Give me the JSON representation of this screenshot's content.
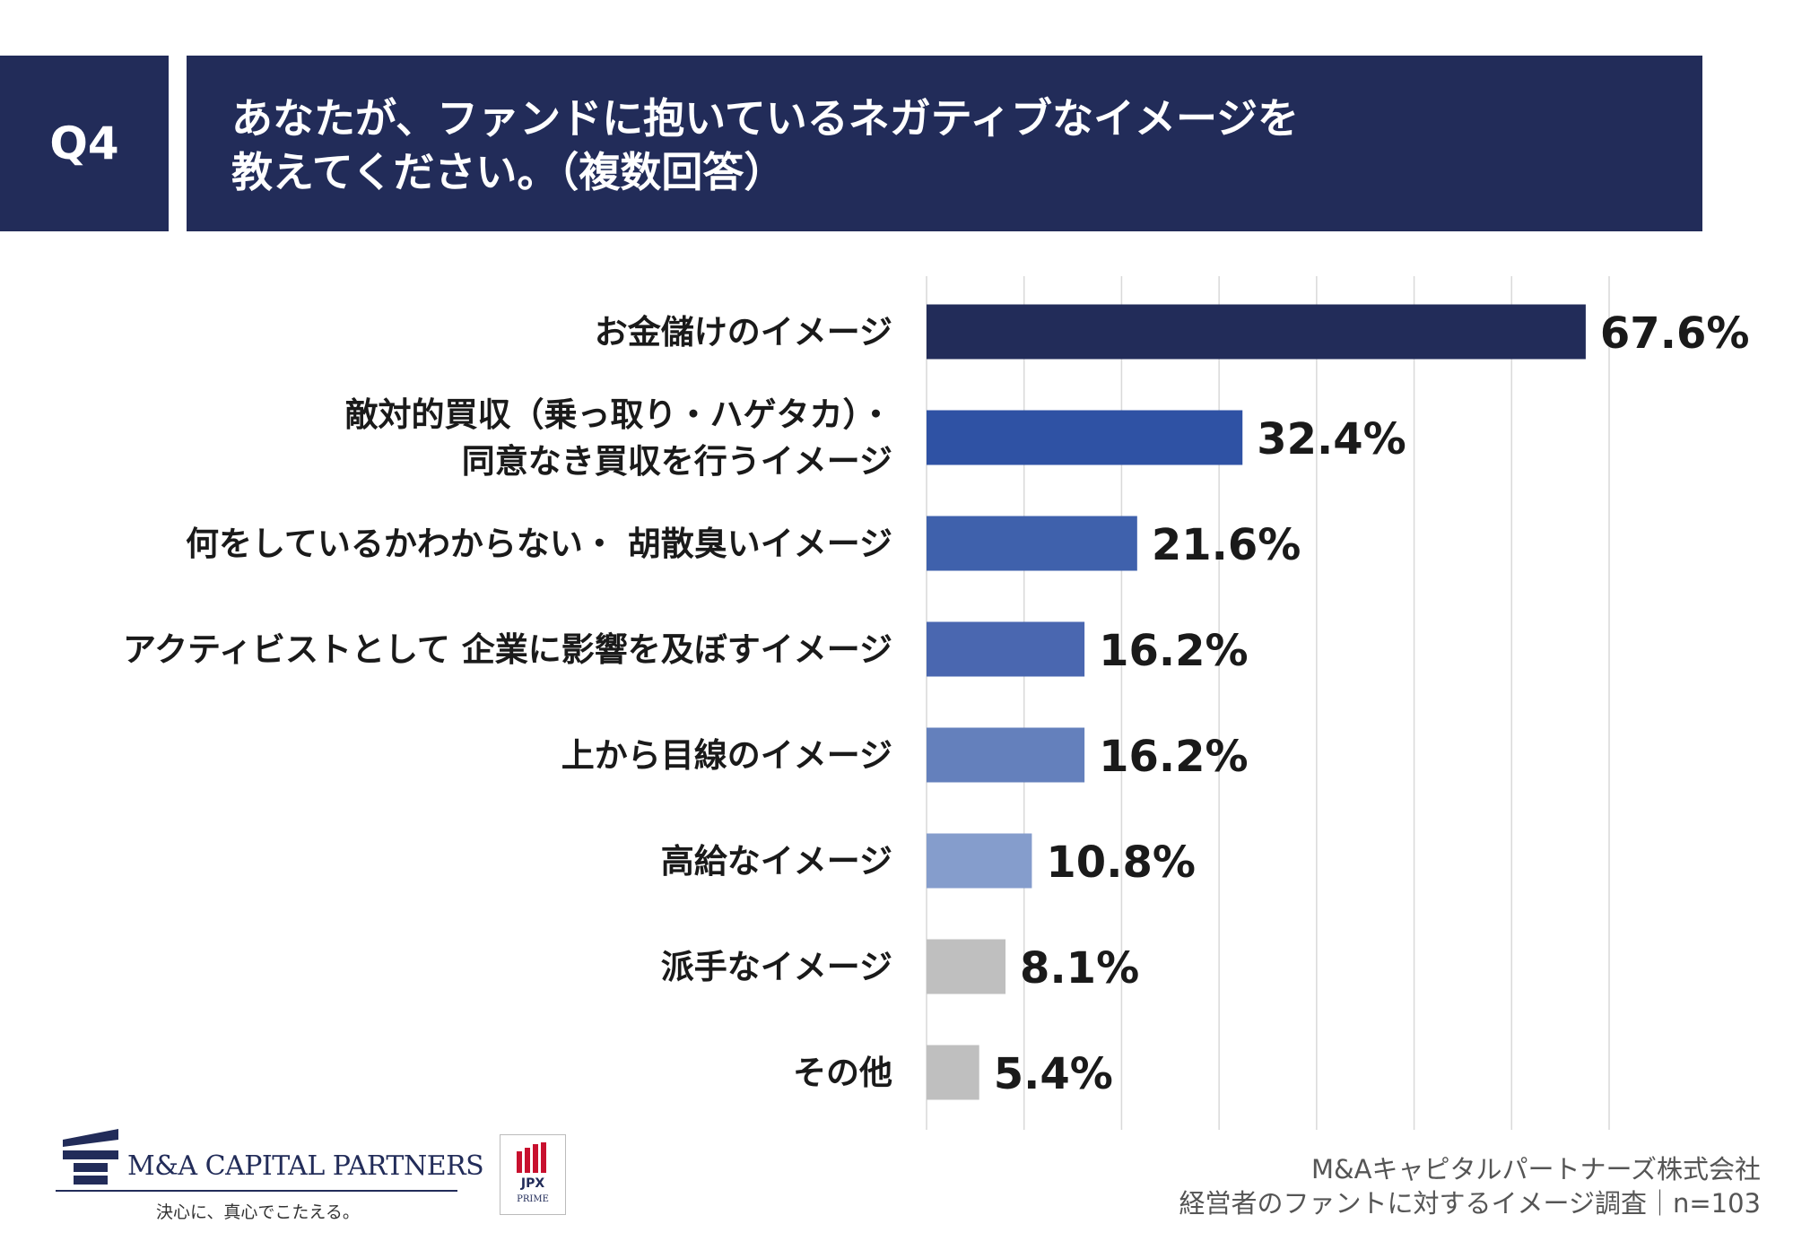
{
  "question": {
    "number": "Q4",
    "text_line1": "あなたが、ファンドに抱いているネガティブなイメージを",
    "text_line2": "教えてください。（複数回答）"
  },
  "chart_data": {
    "type": "bar",
    "orientation": "horizontal",
    "value_suffix": "%",
    "xlim": [
      0,
      70
    ],
    "gridline_step": 10,
    "grid": true,
    "legend": "none",
    "categories": [
      [
        "お金儲けのイメージ"
      ],
      [
        "敵対的買収（乗っ取り・ハゲタカ）・",
        "同意なき買収を行うイメージ"
      ],
      [
        "何をしているかわからない・ 胡散臭いイメージ"
      ],
      [
        "アクティビストとして 企業に影響を及ぼすイメージ"
      ],
      [
        "上から目線のイメージ"
      ],
      [
        "高給なイメージ"
      ],
      [
        "派手なイメージ"
      ],
      [
        "その他"
      ]
    ],
    "values": [
      67.6,
      32.4,
      21.6,
      16.2,
      16.2,
      10.8,
      8.1,
      5.4
    ],
    "value_labels": [
      "67.6%",
      "32.4%",
      "21.6%",
      "16.2%",
      "16.2%",
      "10.8%",
      "8.1%",
      "5.4%"
    ],
    "colors": [
      "#222c59",
      "#2f52a4",
      "#3f61ac",
      "#4a67b0",
      "#6480bc",
      "#859dcc",
      "#bfbfbf",
      "#bfbfbf"
    ]
  },
  "footer": {
    "company_logo_text": "M&A CAPITAL PARTNERS",
    "tagline": "決心に、真心でこたえる。",
    "jpx_text": "JPX",
    "jpx_sub": "PRIME",
    "source_line1": "M&Aキャピタルパートナーズ株式会社",
    "source_line2": "経営者のファントに対するイメージ調査｜n=103"
  }
}
